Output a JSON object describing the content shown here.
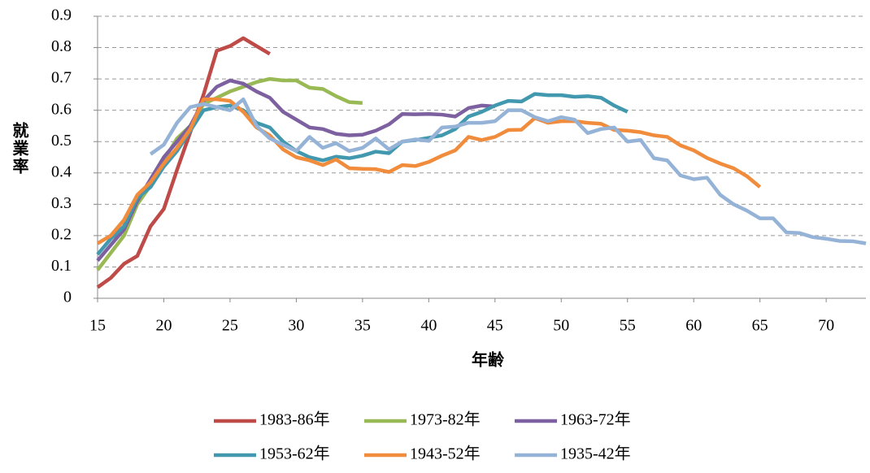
{
  "chart_data": {
    "type": "line",
    "x_label": "年齢",
    "y_label": "就業率",
    "xlim": [
      15,
      73
    ],
    "xticks": [
      15,
      20,
      25,
      30,
      35,
      40,
      45,
      50,
      55,
      60,
      65,
      70
    ],
    "ylim": [
      0,
      0.9
    ],
    "yticks": [
      0,
      0.1,
      0.2,
      0.3,
      0.4,
      0.5,
      0.6,
      0.7,
      0.8,
      0.9
    ],
    "grid": true,
    "legend": "bottom",
    "series": [
      {
        "name": "1983-86年",
        "color": "#be4b48",
        "x": [
          15,
          16,
          17,
          18,
          19,
          20,
          21,
          22,
          23,
          24,
          25,
          26,
          27,
          28
        ],
        "values": [
          0.035,
          0.065,
          0.11,
          0.135,
          0.23,
          0.285,
          0.41,
          0.53,
          0.65,
          0.79,
          0.805,
          0.83,
          0.805,
          0.78
        ]
      },
      {
        "name": "1973-82年",
        "color": "#98b954",
        "x": [
          15,
          16,
          17,
          18,
          19,
          20,
          21,
          22,
          23,
          24,
          25,
          26,
          27,
          28,
          29,
          30,
          31,
          32,
          33,
          34,
          35
        ],
        "values": [
          0.09,
          0.145,
          0.2,
          0.3,
          0.36,
          0.44,
          0.51,
          0.55,
          0.62,
          0.64,
          0.66,
          0.675,
          0.69,
          0.7,
          0.695,
          0.695,
          0.672,
          0.668,
          0.645,
          0.626,
          0.623
        ]
      },
      {
        "name": "1963-72年",
        "color": "#7d60a0",
        "x": [
          15,
          16,
          17,
          18,
          19,
          20,
          21,
          22,
          23,
          24,
          25,
          26,
          27,
          28,
          29,
          30,
          31,
          32,
          33,
          34,
          35,
          36,
          37,
          38,
          39,
          40,
          41,
          42,
          43,
          44,
          45
        ],
        "values": [
          0.12,
          0.17,
          0.22,
          0.31,
          0.38,
          0.45,
          0.5,
          0.55,
          0.63,
          0.675,
          0.695,
          0.685,
          0.66,
          0.64,
          0.595,
          0.57,
          0.545,
          0.54,
          0.525,
          0.52,
          0.522,
          0.535,
          0.555,
          0.588,
          0.587,
          0.588,
          0.586,
          0.58,
          0.607,
          0.615,
          0.612
        ]
      },
      {
        "name": "1953-62年",
        "color": "#4198af",
        "x": [
          15,
          16,
          17,
          18,
          19,
          20,
          21,
          22,
          23,
          24,
          25,
          26,
          27,
          28,
          29,
          30,
          31,
          32,
          33,
          34,
          35,
          36,
          37,
          38,
          39,
          40,
          41,
          42,
          43,
          44,
          45,
          46,
          47,
          48,
          49,
          50,
          51,
          52,
          53,
          54,
          55
        ],
        "values": [
          0.14,
          0.19,
          0.23,
          0.32,
          0.355,
          0.42,
          0.47,
          0.535,
          0.6,
          0.61,
          0.615,
          0.6,
          0.56,
          0.545,
          0.5,
          0.47,
          0.45,
          0.44,
          0.452,
          0.447,
          0.455,
          0.468,
          0.463,
          0.5,
          0.505,
          0.512,
          0.52,
          0.54,
          0.58,
          0.595,
          0.615,
          0.63,
          0.628,
          0.652,
          0.648,
          0.648,
          0.643,
          0.645,
          0.64,
          0.615,
          0.595
        ]
      },
      {
        "name": "1943-52年",
        "color": "#f08c3c",
        "x": [
          15,
          16,
          17,
          18,
          19,
          20,
          21,
          22,
          23,
          24,
          25,
          26,
          27,
          28,
          29,
          30,
          31,
          32,
          33,
          34,
          35,
          36,
          37,
          38,
          39,
          40,
          41,
          42,
          43,
          44,
          45,
          46,
          47,
          48,
          49,
          50,
          51,
          52,
          53,
          54,
          55,
          56,
          57,
          58,
          59,
          60,
          61,
          62,
          63,
          64,
          65
        ],
        "values": [
          0.175,
          0.2,
          0.25,
          0.33,
          0.37,
          0.43,
          0.48,
          0.54,
          0.635,
          0.635,
          0.63,
          0.595,
          0.545,
          0.52,
          0.475,
          0.45,
          0.44,
          0.425,
          0.443,
          0.415,
          0.413,
          0.412,
          0.403,
          0.425,
          0.422,
          0.435,
          0.455,
          0.472,
          0.515,
          0.505,
          0.515,
          0.537,
          0.538,
          0.575,
          0.56,
          0.565,
          0.565,
          0.56,
          0.557,
          0.537,
          0.535,
          0.53,
          0.52,
          0.515,
          0.488,
          0.472,
          0.448,
          0.43,
          0.415,
          0.39,
          0.355
        ]
      },
      {
        "name": "1935-42年",
        "color": "#95b3d7",
        "x": [
          19,
          20,
          21,
          22,
          23,
          24,
          25,
          26,
          27,
          28,
          29,
          30,
          31,
          32,
          33,
          34,
          35,
          36,
          37,
          38,
          39,
          40,
          41,
          42,
          43,
          44,
          45,
          46,
          47,
          48,
          49,
          50,
          51,
          52,
          53,
          54,
          55,
          56,
          57,
          58,
          59,
          60,
          61,
          62,
          63,
          64,
          65,
          66,
          67,
          68,
          69,
          70,
          71,
          72,
          73
        ],
        "values": [
          0.46,
          0.49,
          0.56,
          0.61,
          0.62,
          0.61,
          0.6,
          0.635,
          0.55,
          0.51,
          0.49,
          0.47,
          0.515,
          0.48,
          0.495,
          0.47,
          0.48,
          0.51,
          0.475,
          0.5,
          0.507,
          0.502,
          0.545,
          0.548,
          0.56,
          0.56,
          0.565,
          0.6,
          0.6,
          0.578,
          0.565,
          0.578,
          0.57,
          0.527,
          0.54,
          0.545,
          0.5,
          0.505,
          0.447,
          0.44,
          0.392,
          0.38,
          0.385,
          0.33,
          0.3,
          0.28,
          0.255,
          0.255,
          0.21,
          0.208,
          0.195,
          0.19,
          0.183,
          0.182,
          0.175
        ]
      }
    ]
  }
}
